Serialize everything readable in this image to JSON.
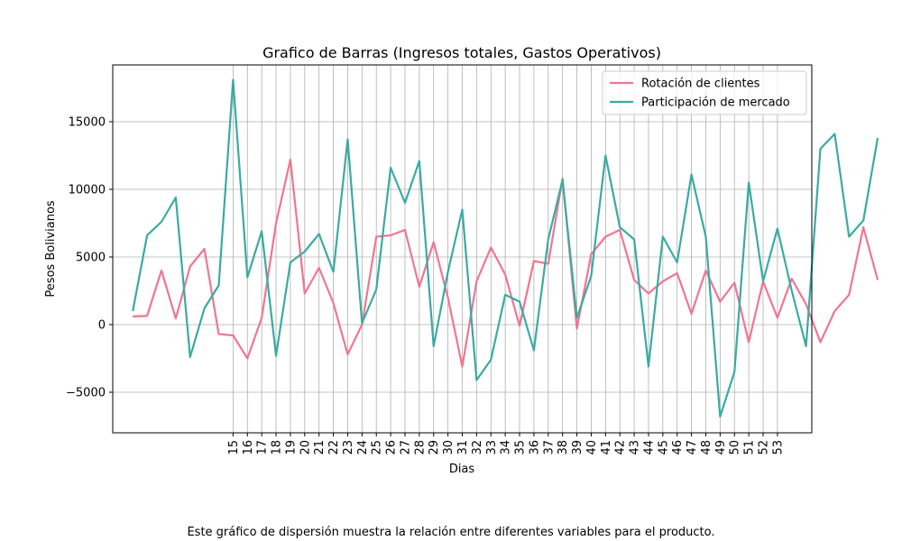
{
  "chart_data": {
    "type": "line",
    "title": "Grafico de Barras (Ingresos totales, Gastos Operativos)",
    "xlabel": "Dias",
    "ylabel": "Pesos Bolivianos",
    "x_start": 8,
    "x_end": 53,
    "xticks": [
      15,
      16,
      17,
      18,
      19,
      20,
      21,
      22,
      23,
      24,
      25,
      26,
      27,
      28,
      29,
      30,
      31,
      32,
      33,
      34,
      35,
      36,
      37,
      38,
      39,
      40,
      41,
      42,
      43,
      44,
      45,
      46,
      47,
      48,
      49,
      50,
      51,
      52,
      53
    ],
    "yticks": [
      -5000,
      0,
      5000,
      10000,
      15000
    ],
    "ytick_labels": [
      "−5000",
      "0",
      "5000",
      "10000",
      "15000"
    ],
    "xlim": [
      6.6,
      55.4
    ],
    "ylim": [
      -8000,
      19200
    ],
    "grid": true,
    "legend_position": "top-right",
    "series": [
      {
        "name": "Rotación de clientes",
        "color": "#f07690",
        "values": [
          600,
          650,
          4000,
          450,
          4300,
          5600,
          -700,
          -800,
          -2500,
          500,
          7500,
          12200,
          2300,
          4200,
          1600,
          -2200,
          0,
          6500,
          6600,
          7000,
          2800,
          6100,
          2000,
          -3100,
          3200,
          5700,
          3700,
          -100,
          4700,
          4500,
          10800,
          -300,
          5200,
          6500,
          7000,
          3300,
          2300,
          3200,
          3800,
          800,
          4000,
          1700,
          3100,
          -1300,
          3200,
          500,
          3400,
          1500,
          -1300,
          1000,
          2200,
          7200,
          3300
        ]
      },
      {
        "name": "Participación de mercado",
        "color": "#3aaba2",
        "values": [
          1000,
          6600,
          7600,
          9400,
          -2400,
          1200,
          2900,
          18100,
          3500,
          6900,
          -2300,
          4600,
          5400,
          6700,
          3900,
          13700,
          100,
          2600,
          11600,
          9000,
          12100,
          -1600,
          3900,
          8500,
          -4100,
          -2600,
          2200,
          1700,
          -1900,
          6300,
          10700,
          500,
          3600,
          12500,
          7200,
          6300,
          -3100,
          6500,
          4600,
          11100,
          6500,
          -6800,
          -3500,
          10500,
          3200,
          7100,
          2500,
          -1600,
          13000,
          14100,
          6500,
          7700,
          13800
        ]
      }
    ]
  },
  "caption": "Este gráfico de dispersión muestra la relación entre diferentes variables para el producto."
}
